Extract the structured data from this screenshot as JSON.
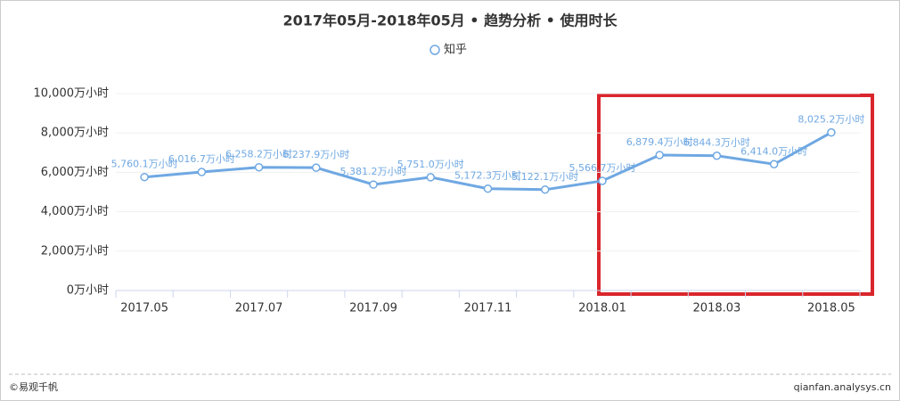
{
  "chart_data": {
    "type": "line",
    "title": "2017年05月-2018年05月 • 趋势分析 • 使用时长",
    "categories": [
      "2017.05",
      null,
      "2017.07",
      null,
      "2017.09",
      null,
      "2017.11",
      null,
      "2018.01",
      null,
      "2018.03",
      null,
      "2018.05"
    ],
    "series": [
      {
        "name": "知乎",
        "color": "#6fa8e2",
        "values": [
          5760.1,
          6016.7,
          6258.2,
          6237.9,
          5381.2,
          5751.0,
          5172.3,
          5122.1,
          5566.7,
          6879.4,
          6844.3,
          6414.0,
          8025.2
        ],
        "value_labels": [
          "5,760.1万小时",
          "6,016.7万小时",
          "6,258.2万小时",
          "6,237.9万小时",
          "5,381.2万小时",
          "5,751.0万小时",
          "5,172.3万小时",
          "5,122.1万小时",
          "5,566.7万小时",
          "6,879.4万小时",
          "6,844.3万小时",
          "6,414.0万小时",
          "8,025.2万小时"
        ]
      }
    ],
    "ylim": [
      0,
      10000
    ],
    "yticks": [
      {
        "value": 0,
        "label": "0万小时"
      },
      {
        "value": 2000,
        "label": "2,000万小时"
      },
      {
        "value": 4000,
        "label": "4,000万小时"
      },
      {
        "value": 6000,
        "label": "6,000万小时"
      },
      {
        "value": 8000,
        "label": "8,000万小时"
      },
      {
        "value": 10000,
        "label": "10,000万小时"
      }
    ],
    "grid": true,
    "footer_left": "©易观千帆",
    "footer_right": "qianfan.analysys.cn"
  }
}
